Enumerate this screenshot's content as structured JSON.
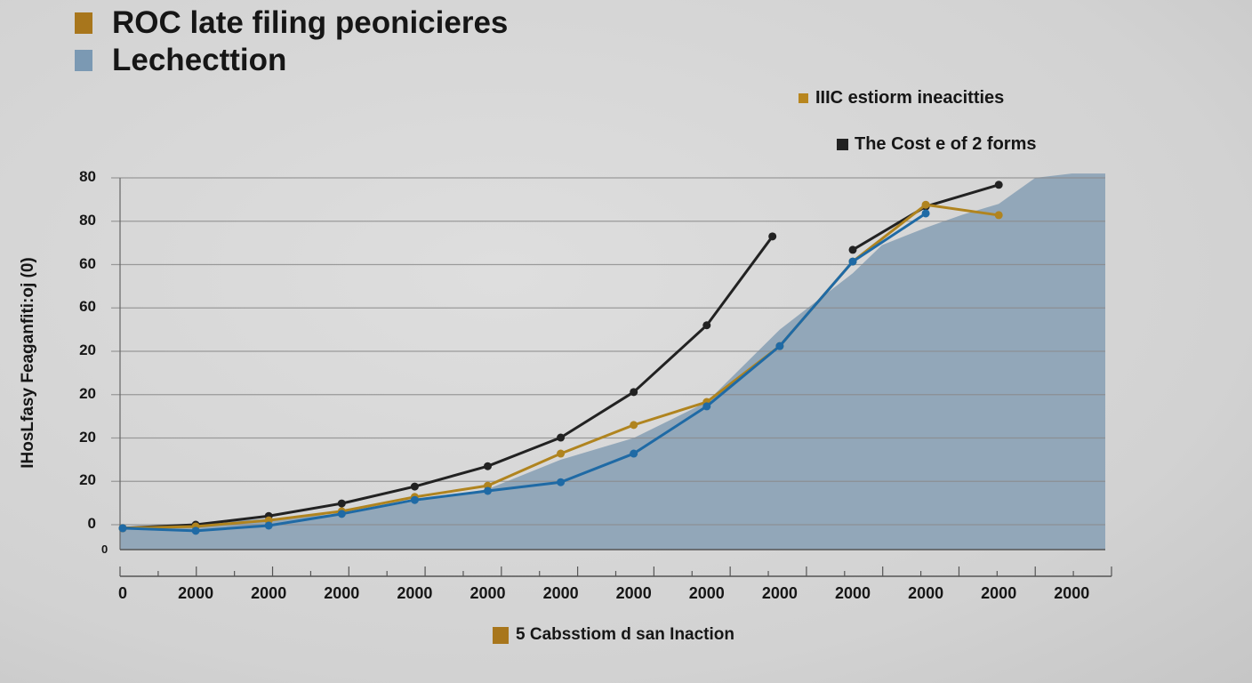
{
  "header": {
    "title_lines": [
      {
        "text": "ROC late filing peonicieres",
        "color": "#a8761c"
      },
      {
        "text": "Lechecttion",
        "color": "#7b99b3"
      }
    ]
  },
  "legend": [
    {
      "label": "IIIC estiorm ineacitties",
      "color": "#b8861f"
    },
    {
      "label": "The Cost e of 2 forms",
      "color": "#222222"
    }
  ],
  "bottom_legend": {
    "label": "5 Cabsstiom d san Inaction",
    "color": "#a8761c"
  },
  "chart_data": {
    "type": "line",
    "title": "",
    "ylabel": "IHosLfasy Feaganfiti:oj (0)",
    "xlabel": "",
    "x_tick_labels": [
      "0",
      "2000",
      "2000",
      "2000",
      "2000",
      "2000",
      "2000",
      "2000",
      "2000",
      "2000",
      "2000",
      "2000",
      "2000",
      "2000"
    ],
    "y_tick_labels": [
      "0",
      "20",
      "20",
      "20",
      "20",
      "60",
      "60",
      "80",
      "80"
    ],
    "y_axis_origin_marker": "0",
    "ylim": [
      -0.6,
      8
    ],
    "grid": true,
    "colors": {
      "line_black": "#222222",
      "line_gold": "#b0841f",
      "line_blue": "#1f6aa5",
      "area": "#8ea4b7"
    },
    "series": [
      {
        "color": "#222222",
        "points": [
          [
            0,
            -0.08
          ],
          [
            1,
            0
          ],
          [
            2,
            0.2
          ],
          [
            3,
            0.49
          ],
          [
            4,
            0.88
          ],
          [
            5,
            1.35
          ],
          [
            6,
            2.01
          ],
          [
            7,
            3.06
          ],
          [
            8,
            4.6
          ],
          [
            8.9,
            6.65
          ],
          null,
          [
            10,
            6.34
          ],
          [
            11,
            7.34
          ],
          [
            12,
            7.84
          ]
        ]
      },
      {
        "color": "#b0841f",
        "points": [
          [
            0,
            -0.08
          ],
          [
            1,
            -0.04
          ],
          [
            2,
            0.1
          ],
          [
            3,
            0.31
          ],
          [
            4,
            0.64
          ],
          [
            5,
            0.9
          ],
          [
            6,
            1.64
          ],
          [
            7,
            2.3
          ],
          [
            8,
            2.83
          ],
          [
            9,
            4.12
          ],
          [
            10,
            6.07
          ],
          [
            11,
            7.38
          ],
          [
            12,
            7.14
          ]
        ]
      },
      {
        "color": "#1f6aa5",
        "points": [
          [
            0,
            -0.08
          ],
          [
            1,
            -0.14
          ],
          [
            2,
            -0.02
          ],
          [
            3,
            0.25
          ],
          [
            4,
            0.57
          ],
          [
            5,
            0.78
          ],
          [
            6,
            0.98
          ],
          [
            7,
            1.64
          ],
          [
            8,
            2.73
          ],
          [
            9,
            4.12
          ],
          [
            10,
            6.07
          ],
          [
            11,
            7.18
          ]
        ]
      }
    ],
    "area": {
      "color": "#8ea4b7",
      "points": [
        [
          0,
          -0.08
        ],
        [
          3,
          0.25
        ],
        [
          5,
          0.82
        ],
        [
          6,
          1.5
        ],
        [
          7,
          2.0
        ],
        [
          8,
          2.83
        ],
        [
          9,
          4.5
        ],
        [
          10,
          5.8
        ],
        [
          10.4,
          6.45
        ],
        [
          11,
          6.85
        ],
        [
          11.5,
          7.15
        ],
        [
          12,
          7.4
        ],
        [
          12.5,
          8.0
        ],
        [
          13,
          8.1
        ],
        [
          13.5,
          8.1
        ]
      ]
    }
  }
}
